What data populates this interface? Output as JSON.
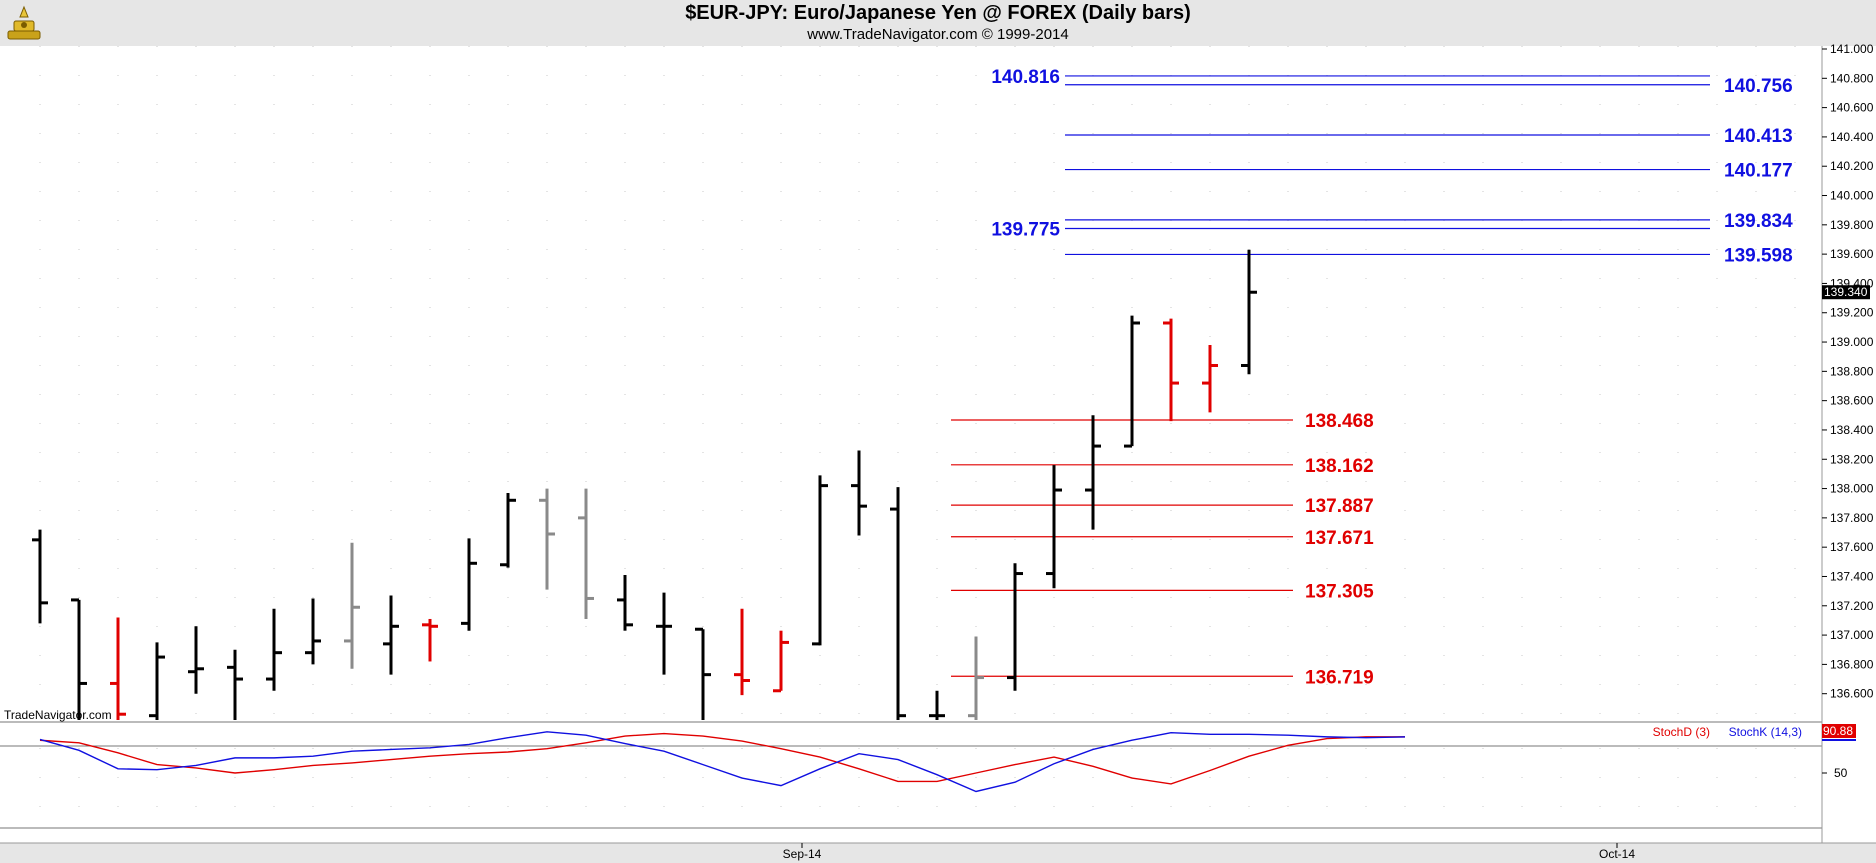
{
  "header": {
    "title": "$EUR-JPY:  Euro/Japanese Yen @ FOREX  (Daily bars)",
    "subtitle": "www.TradeNavigator.com © 1999-2014"
  },
  "watermark": "TradeNavigator.com",
  "colors": {
    "up_bar": "#000000",
    "down_bar": "#e00000",
    "neutral_bar": "#8a8a8a",
    "blue_levels": "#1010e0",
    "red_levels": "#e00000",
    "stoch_d": "#e00000",
    "stoch_k": "#1010e0"
  },
  "chart_data": [
    {
      "type": "ohlc",
      "title": "$EUR-JPY:  Euro/Japanese Yen @ FOREX  (Daily bars)",
      "y_ticks": [
        "141.000",
        "140.800",
        "140.600",
        "140.400",
        "140.200",
        "140.000",
        "139.800",
        "139.600",
        "139.400",
        "139.200",
        "139.000",
        "138.800",
        "138.600",
        "138.400",
        "138.200",
        "138.000",
        "137.800",
        "137.600",
        "137.400",
        "137.200",
        "137.000",
        "136.800",
        "136.600"
      ],
      "ylim": [
        136.4,
        141.0
      ],
      "last_price": "139.340",
      "x_labels": [
        {
          "label": "Sep-14",
          "index": 19
        },
        {
          "label": "Oct-14",
          "index": 40
        }
      ],
      "bars": [
        {
          "i": 0,
          "o": 137.65,
          "h": 137.72,
          "l": 137.08,
          "c": 137.22,
          "col": "up"
        },
        {
          "i": 1,
          "o": 137.24,
          "h": 137.24,
          "l": 136.4,
          "c": 136.67,
          "col": "up"
        },
        {
          "i": 2,
          "o": 136.67,
          "h": 137.12,
          "l": 136.4,
          "c": 136.46,
          "col": "down"
        },
        {
          "i": 3,
          "o": 136.45,
          "h": 136.95,
          "l": 136.4,
          "c": 136.85,
          "col": "up"
        },
        {
          "i": 4,
          "o": 136.75,
          "h": 137.06,
          "l": 136.6,
          "c": 136.77,
          "col": "up"
        },
        {
          "i": 5,
          "o": 136.78,
          "h": 136.9,
          "l": 136.4,
          "c": 136.7,
          "col": "up"
        },
        {
          "i": 6,
          "o": 136.7,
          "h": 137.18,
          "l": 136.62,
          "c": 136.88,
          "col": "up"
        },
        {
          "i": 7,
          "o": 136.88,
          "h": 137.25,
          "l": 136.8,
          "c": 136.96,
          "col": "up"
        },
        {
          "i": 8,
          "o": 136.96,
          "h": 137.63,
          "l": 136.77,
          "c": 137.19,
          "col": "neutral"
        },
        {
          "i": 9,
          "o": 136.94,
          "h": 137.27,
          "l": 136.73,
          "c": 137.06,
          "col": "up"
        },
        {
          "i": 10,
          "o": 137.07,
          "h": 137.11,
          "l": 136.82,
          "c": 137.06,
          "col": "down"
        },
        {
          "i": 11,
          "o": 137.08,
          "h": 137.66,
          "l": 137.03,
          "c": 137.49,
          "col": "up"
        },
        {
          "i": 12,
          "o": 137.48,
          "h": 137.97,
          "l": 137.46,
          "c": 137.92,
          "col": "up"
        },
        {
          "i": 13,
          "o": 137.92,
          "h": 138.0,
          "l": 137.31,
          "c": 137.69,
          "col": "neutral"
        },
        {
          "i": 14,
          "o": 137.8,
          "h": 138.0,
          "l": 137.11,
          "c": 137.25,
          "col": "neutral"
        },
        {
          "i": 15,
          "o": 137.24,
          "h": 137.41,
          "l": 137.03,
          "c": 137.07,
          "col": "up"
        },
        {
          "i": 16,
          "o": 137.06,
          "h": 137.29,
          "l": 136.73,
          "c": 137.06,
          "col": "up"
        },
        {
          "i": 17,
          "o": 137.04,
          "h": 137.04,
          "l": 136.4,
          "c": 136.73,
          "col": "up"
        },
        {
          "i": 18,
          "o": 136.73,
          "h": 137.18,
          "l": 136.59,
          "c": 136.69,
          "col": "down"
        },
        {
          "i": 19,
          "o": 136.62,
          "h": 137.03,
          "l": 136.62,
          "c": 136.95,
          "col": "down"
        },
        {
          "i": 20,
          "o": 136.94,
          "h": 138.09,
          "l": 136.93,
          "c": 138.02,
          "col": "up"
        },
        {
          "i": 21,
          "o": 138.02,
          "h": 138.26,
          "l": 137.68,
          "c": 137.88,
          "col": "up"
        },
        {
          "i": 22,
          "o": 137.86,
          "h": 138.01,
          "l": 136.4,
          "c": 136.45,
          "col": "up"
        },
        {
          "i": 23,
          "o": 136.45,
          "h": 136.62,
          "l": 136.4,
          "c": 136.45,
          "col": "up"
        },
        {
          "i": 24,
          "o": 136.45,
          "h": 136.99,
          "l": 136.4,
          "c": 136.71,
          "col": "neutral"
        },
        {
          "i": 25,
          "o": 136.71,
          "h": 137.49,
          "l": 136.62,
          "c": 137.42,
          "col": "up"
        },
        {
          "i": 26,
          "o": 137.42,
          "h": 138.16,
          "l": 137.32,
          "c": 137.99,
          "col": "up"
        },
        {
          "i": 27,
          "o": 137.99,
          "h": 138.5,
          "l": 137.72,
          "c": 138.29,
          "col": "up"
        },
        {
          "i": 28,
          "o": 138.29,
          "h": 139.18,
          "l": 138.29,
          "c": 139.13,
          "col": "up"
        },
        {
          "i": 29,
          "o": 139.13,
          "h": 139.16,
          "l": 138.46,
          "c": 138.72,
          "col": "down"
        },
        {
          "i": 30,
          "o": 138.72,
          "h": 138.98,
          "l": 138.52,
          "c": 138.84,
          "col": "down"
        },
        {
          "i": 31,
          "o": 138.84,
          "h": 139.63,
          "l": 138.78,
          "c": 139.34,
          "col": "up"
        }
      ],
      "levels": [
        {
          "value": 140.816,
          "label": "140.816",
          "side": "left",
          "color": "blue"
        },
        {
          "value": 140.756,
          "label": "140.756",
          "side": "right",
          "color": "blue"
        },
        {
          "value": 140.413,
          "label": "140.413",
          "side": "right",
          "color": "blue"
        },
        {
          "value": 140.177,
          "label": "140.177",
          "side": "right",
          "color": "blue"
        },
        {
          "value": 139.834,
          "label": "139.834",
          "side": "right",
          "color": "blue"
        },
        {
          "value": 139.775,
          "label": "139.775",
          "side": "left",
          "color": "blue"
        },
        {
          "value": 139.598,
          "label": "139.598",
          "side": "right",
          "color": "blue"
        },
        {
          "value": 138.468,
          "label": "138.468",
          "side": "right",
          "color": "red"
        },
        {
          "value": 138.162,
          "label": "138.162",
          "side": "right",
          "color": "red"
        },
        {
          "value": 137.887,
          "label": "137.887",
          "side": "right",
          "color": "red"
        },
        {
          "value": 137.671,
          "label": "137.671",
          "side": "right",
          "color": "red"
        },
        {
          "value": 137.305,
          "label": "137.305",
          "side": "right",
          "color": "red"
        },
        {
          "value": 136.719,
          "label": "136.719",
          "side": "right",
          "color": "red"
        }
      ]
    },
    {
      "type": "line",
      "ylim": [
        0,
        100
      ],
      "y_ticks": [
        "50"
      ],
      "last_value": "90.88",
      "series": [
        {
          "name": "StochD (3)",
          "color": "red",
          "values": [
            89,
            86,
            74,
            60,
            56,
            50,
            54,
            59,
            62,
            66,
            70,
            73,
            75,
            79,
            86,
            94,
            97,
            94,
            88,
            79,
            69,
            55,
            40,
            40,
            50,
            60,
            69,
            58,
            44,
            37,
            53,
            70,
            83,
            91,
            93,
            93
          ]
        },
        {
          "name": "StochK (14,3)",
          "color": "blue",
          "values": [
            90,
            77,
            55,
            54,
            59,
            68,
            68,
            70,
            76,
            78,
            80,
            84,
            92,
            99,
            95,
            85,
            76,
            60,
            44,
            35,
            55,
            73,
            66,
            48,
            28,
            39,
            61,
            78,
            89,
            98,
            96,
            96,
            95,
            93,
            92,
            93
          ]
        }
      ]
    }
  ]
}
